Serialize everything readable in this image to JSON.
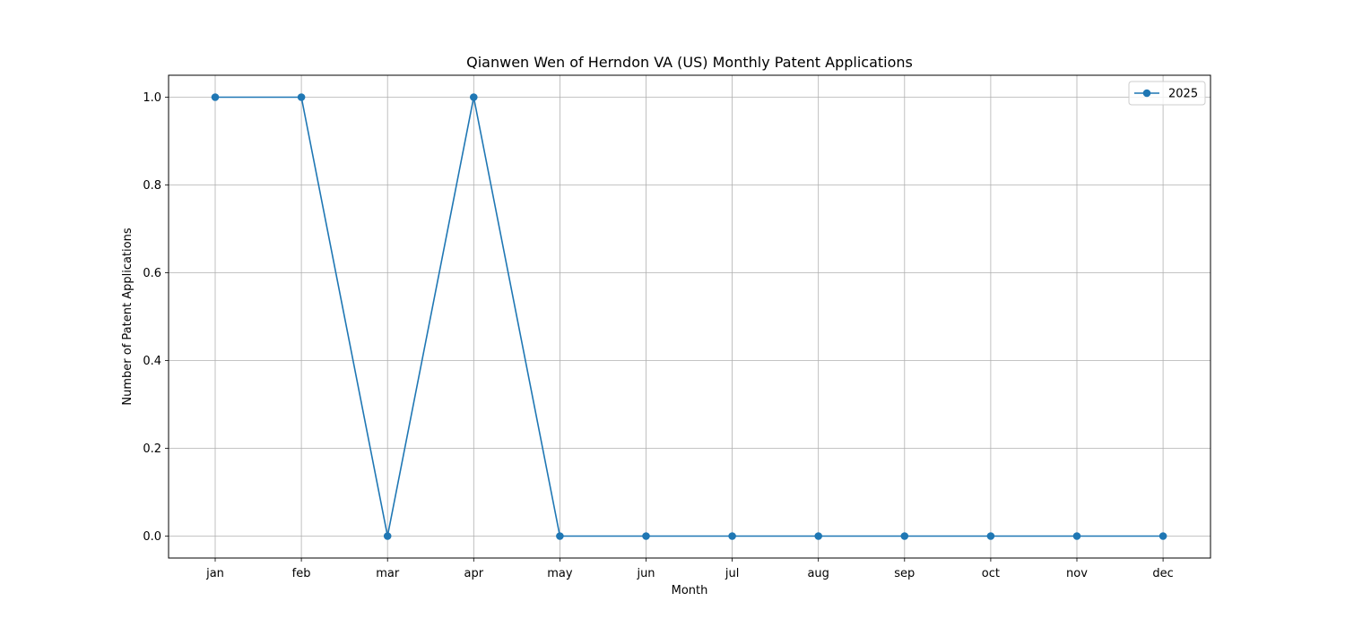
{
  "chart_data": {
    "type": "line",
    "title": "Qianwen Wen of Herndon VA (US) Monthly Patent Applications",
    "xlabel": "Month",
    "ylabel": "Number of Patent Applications",
    "categories": [
      "jan",
      "feb",
      "mar",
      "apr",
      "may",
      "jun",
      "jul",
      "aug",
      "sep",
      "oct",
      "nov",
      "dec"
    ],
    "series": [
      {
        "name": "2025",
        "values": [
          1,
          1,
          0,
          1,
          0,
          0,
          0,
          0,
          0,
          0,
          0,
          0
        ],
        "color": "#1f77b4"
      }
    ],
    "ylim": [
      -0.05,
      1.05
    ],
    "yticks": [
      "0.0",
      "0.2",
      "0.4",
      "0.6",
      "0.8",
      "1.0"
    ],
    "grid": true,
    "legend_position": "top-right"
  }
}
